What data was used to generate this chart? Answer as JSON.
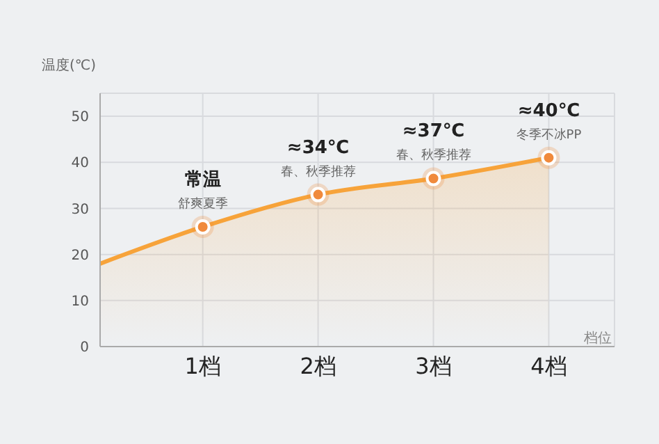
{
  "chart_data": {
    "type": "area",
    "xlabel": "档位",
    "ylabel": "温度(℃)",
    "x": [
      0.11,
      1,
      2,
      3,
      4
    ],
    "xlim": [
      0.11,
      4.57
    ],
    "xticks": [
      {
        "value": 1,
        "label": "1档"
      },
      {
        "value": 2,
        "label": "2档"
      },
      {
        "value": 3,
        "label": "3档"
      },
      {
        "value": 4,
        "label": "4档"
      }
    ],
    "ylim": [
      0,
      55
    ],
    "yticks": [
      0,
      10,
      20,
      30,
      40,
      50
    ],
    "grid": true,
    "series": [
      {
        "color": "#f7a33a",
        "values": [
          18,
          26,
          33,
          36.5,
          41
        ]
      },
      {
        "type": "scatter",
        "color": "#f08a3c",
        "x": [
          1,
          2,
          3,
          4
        ],
        "values": [
          26,
          33,
          36.5,
          41
        ],
        "marker": "circle"
      }
    ],
    "annotations": [
      {
        "text": "常温",
        "x": 1,
        "y": 26
      },
      {
        "text": "舒爽夏季",
        "x": 1,
        "y": 26
      },
      {
        "text": "≈34℃",
        "x": 2,
        "y": 33
      },
      {
        "text": "春、秋季推荐",
        "x": 2,
        "y": 33
      },
      {
        "text": "≈37℃",
        "x": 3,
        "y": 36.5
      },
      {
        "text": "春、秋季推荐",
        "x": 3,
        "y": 36.5
      },
      {
        "text": "≈40℃",
        "x": 4,
        "y": 41
      },
      {
        "text": "冬季不冰PP",
        "x": 4,
        "y": 41
      }
    ]
  }
}
